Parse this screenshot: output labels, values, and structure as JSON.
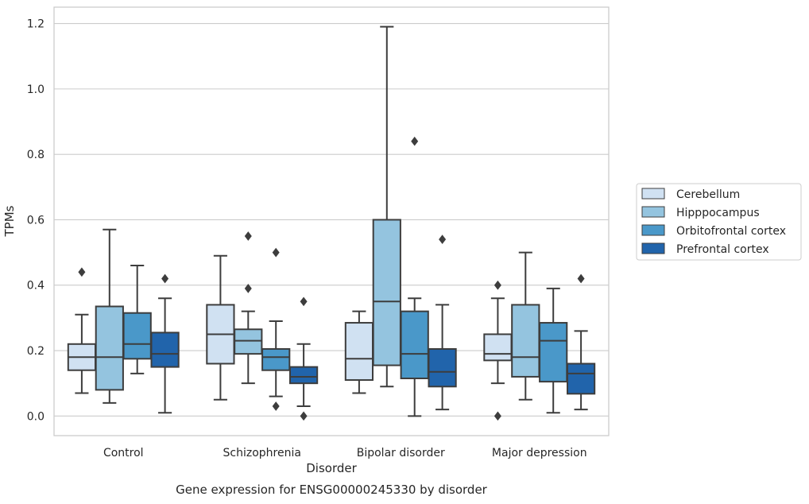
{
  "chart_data": {
    "type": "boxplot",
    "title": "",
    "caption": "Gene expression for ENSG00000245330 by disorder",
    "xlabel": "Disorder",
    "ylabel": "TPMs",
    "ylim": [
      -0.06,
      1.25
    ],
    "yticks": [
      0.0,
      0.2,
      0.4,
      0.6,
      0.8,
      1.0,
      1.2
    ],
    "ytick_labels": [
      "0.0",
      "0.2",
      "0.4",
      "0.6",
      "0.8",
      "1.0",
      "1.2"
    ],
    "grid": true,
    "legend_position": "right",
    "categories": [
      "Control",
      "Schizophrenia",
      "Bipolar disorder",
      "Major depression"
    ],
    "series": [
      {
        "name": "Cerebellum",
        "color": "#d0e1f2",
        "boxes": [
          {
            "whislo": 0.07,
            "q1": 0.14,
            "med": 0.18,
            "q3": 0.22,
            "whishi": 0.31,
            "fliers": [
              0.44
            ]
          },
          {
            "whislo": 0.05,
            "q1": 0.16,
            "med": 0.25,
            "q3": 0.34,
            "whishi": 0.49,
            "fliers": []
          },
          {
            "whislo": 0.07,
            "q1": 0.11,
            "med": 0.175,
            "q3": 0.285,
            "whishi": 0.32,
            "fliers": []
          },
          {
            "whislo": 0.1,
            "q1": 0.17,
            "med": 0.19,
            "q3": 0.25,
            "whishi": 0.36,
            "fliers": [
              0.4,
              0.0
            ]
          }
        ]
      },
      {
        "name": "Hipppocampus",
        "color": "#94c4df",
        "boxes": [
          {
            "whislo": 0.04,
            "q1": 0.08,
            "med": 0.18,
            "q3": 0.335,
            "whishi": 0.57,
            "fliers": []
          },
          {
            "whislo": 0.1,
            "q1": 0.19,
            "med": 0.23,
            "q3": 0.265,
            "whishi": 0.32,
            "fliers": [
              0.39,
              0.55
            ]
          },
          {
            "whislo": 0.09,
            "q1": 0.155,
            "med": 0.35,
            "q3": 0.6,
            "whishi": 1.19,
            "fliers": []
          },
          {
            "whislo": 0.05,
            "q1": 0.12,
            "med": 0.18,
            "q3": 0.34,
            "whishi": 0.5,
            "fliers": []
          }
        ]
      },
      {
        "name": "Orbitofrontal cortex",
        "color": "#4a98c9",
        "boxes": [
          {
            "whislo": 0.13,
            "q1": 0.175,
            "med": 0.22,
            "q3": 0.315,
            "whishi": 0.46,
            "fliers": []
          },
          {
            "whislo": 0.06,
            "q1": 0.14,
            "med": 0.18,
            "q3": 0.205,
            "whishi": 0.29,
            "fliers": [
              0.5,
              0.03
            ]
          },
          {
            "whislo": 0.0,
            "q1": 0.115,
            "med": 0.19,
            "q3": 0.32,
            "whishi": 0.36,
            "fliers": [
              0.84
            ]
          },
          {
            "whislo": 0.01,
            "q1": 0.105,
            "med": 0.23,
            "q3": 0.285,
            "whishi": 0.39,
            "fliers": []
          }
        ]
      },
      {
        "name": "Prefrontal cortex",
        "color": "#2164ab",
        "boxes": [
          {
            "whislo": 0.01,
            "q1": 0.15,
            "med": 0.19,
            "q3": 0.255,
            "whishi": 0.36,
            "fliers": [
              0.42
            ]
          },
          {
            "whislo": 0.03,
            "q1": 0.1,
            "med": 0.12,
            "q3": 0.15,
            "whishi": 0.22,
            "fliers": [
              0.35,
              0.0
            ]
          },
          {
            "whislo": 0.02,
            "q1": 0.09,
            "med": 0.135,
            "q3": 0.205,
            "whishi": 0.34,
            "fliers": [
              0.54
            ]
          },
          {
            "whislo": 0.02,
            "q1": 0.068,
            "med": 0.13,
            "q3": 0.16,
            "whishi": 0.26,
            "fliers": [
              0.42
            ]
          }
        ]
      }
    ]
  }
}
